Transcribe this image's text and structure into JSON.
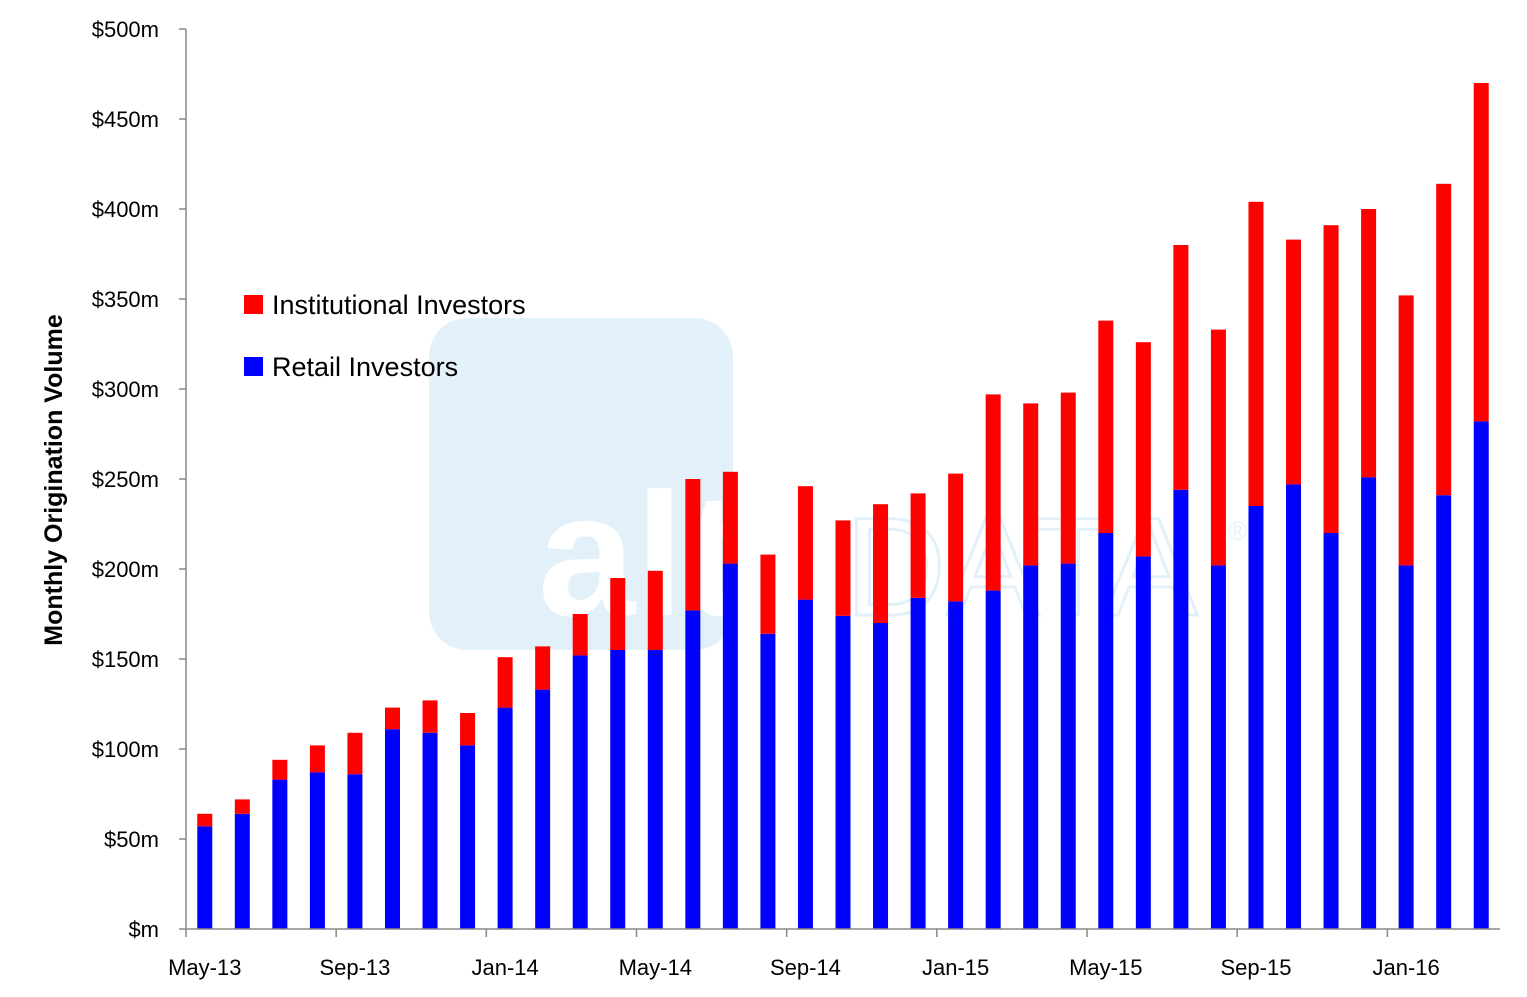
{
  "watermark": {
    "brand_a": "altfi",
    "brand_b": "DATA",
    "mark": "®"
  },
  "chart_data": {
    "type": "bar",
    "stacked": true,
    "title": "",
    "xlabel": "",
    "ylabel": "Monthly Origination Volume",
    "ylim": [
      0,
      500
    ],
    "ytick_values": [
      0,
      50,
      100,
      150,
      200,
      250,
      300,
      350,
      400,
      450,
      500
    ],
    "ytick_labels": [
      "$m",
      "$50m",
      "$100m",
      "$150m",
      "$200m",
      "$250m",
      "$300m",
      "$350m",
      "$400m",
      "$450m",
      "$500m"
    ],
    "categories": [
      "May-13",
      "Jun-13",
      "Jul-13",
      "Aug-13",
      "Sep-13",
      "Oct-13",
      "Nov-13",
      "Dec-13",
      "Jan-14",
      "Feb-14",
      "Mar-14",
      "Apr-14",
      "May-14",
      "Jun-14",
      "Jul-14",
      "Aug-14",
      "Sep-14",
      "Oct-14",
      "Nov-14",
      "Dec-14",
      "Jan-15",
      "Feb-15",
      "Mar-15",
      "Apr-15",
      "May-15",
      "Jun-15",
      "Jul-15",
      "Aug-15",
      "Sep-15",
      "Oct-15",
      "Nov-15",
      "Dec-15",
      "Jan-16",
      "Feb-16",
      "Mar-16"
    ],
    "xtick_labels": [
      {
        "category": "May-13",
        "label": "May-13"
      },
      {
        "category": "Sep-13",
        "label": "Sep-13"
      },
      {
        "category": "Jan-14",
        "label": "Jan-14"
      },
      {
        "category": "May-14",
        "label": "May-14"
      },
      {
        "category": "Sep-14",
        "label": "Sep-14"
      },
      {
        "category": "Jan-15",
        "label": "Jan-15"
      },
      {
        "category": "May-15",
        "label": "May-15"
      },
      {
        "category": "Sep-15",
        "label": "Sep-15"
      },
      {
        "category": "Jan-16",
        "label": "Jan-16"
      }
    ],
    "series": [
      {
        "name": "Retail Investors",
        "color": "#0000ff",
        "values": [
          57,
          64,
          83,
          87,
          86,
          111,
          109,
          102,
          123,
          133,
          152,
          155,
          155,
          177,
          203,
          164,
          183,
          174,
          170,
          184,
          182,
          188,
          202,
          203,
          220,
          207,
          244,
          202,
          235,
          247,
          220,
          251,
          202,
          241,
          282
        ]
      },
      {
        "name": "Institutional Investors",
        "color": "#ff0000",
        "values": [
          7,
          8,
          11,
          15,
          23,
          12,
          18,
          18,
          28,
          24,
          23,
          40,
          44,
          73,
          51,
          44,
          63,
          53,
          66,
          58,
          71,
          109,
          90,
          95,
          118,
          119,
          136,
          131,
          169,
          136,
          171,
          149,
          150,
          173,
          188
        ]
      }
    ],
    "legend": {
      "position": "upper-left",
      "items": [
        {
          "label": "Institutional Investors",
          "color": "#ff0000"
        },
        {
          "label": "Retail Investors",
          "color": "#0000ff"
        }
      ]
    },
    "grid": false
  }
}
